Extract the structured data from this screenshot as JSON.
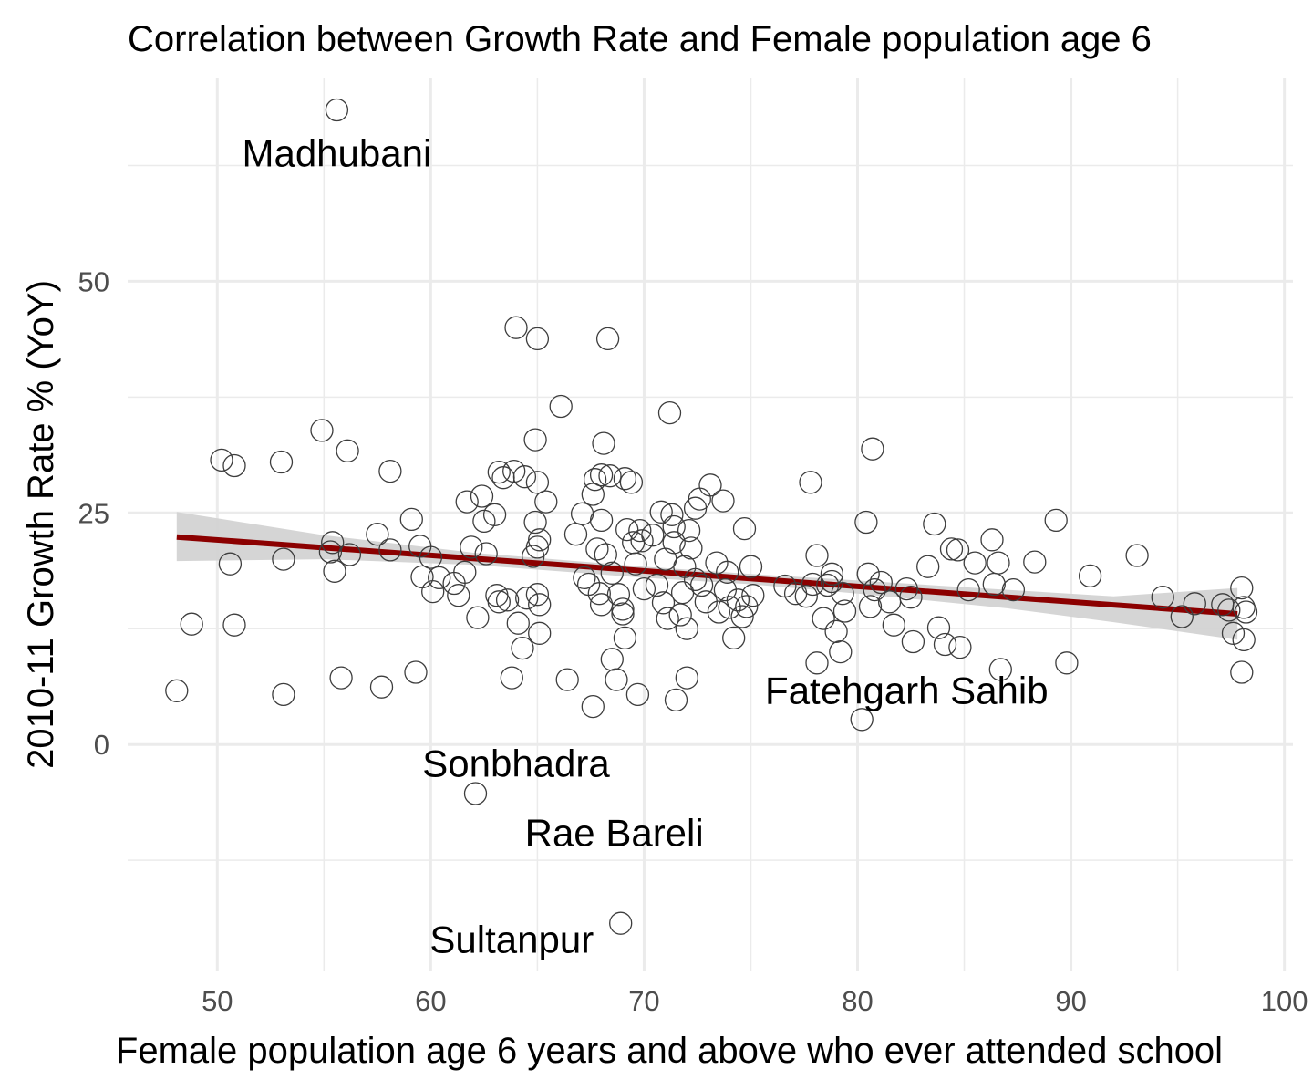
{
  "chart_data": {
    "type": "scatter",
    "title": "Correlation between Growth Rate and Female population age 6",
    "xlabel": "Female population age 6 years and above who ever attended school",
    "ylabel": "2010-11 Growth Rate % (YoY)",
    "xlim": [
      45.8,
      100.4
    ],
    "ylim": [
      -24.5,
      72
    ],
    "x_ticks": [
      50,
      60,
      70,
      80,
      90,
      100
    ],
    "y_ticks": [
      0,
      25,
      50
    ],
    "grid": true,
    "colors": {
      "points": "#3d3d3d",
      "trend": "#8b0000",
      "band": "#d3d3d3",
      "grid": "#ebebeb",
      "tick_text": "#4d4d4d"
    },
    "trend_line": {
      "x": [
        48.1,
        97.8
      ],
      "y": [
        22.4,
        14.1
      ]
    },
    "confidence_band": {
      "x": [
        48.1,
        55,
        62,
        70,
        75,
        80,
        87,
        92,
        97.8
      ],
      "lower": [
        19.8,
        20.0,
        19.4,
        18.0,
        17.3,
        16.3,
        14.7,
        13.2,
        11.3
      ],
      "upper": [
        25.1,
        22.6,
        20.7,
        19.2,
        18.4,
        17.7,
        16.7,
        16.0,
        16.9
      ]
    },
    "labels": [
      {
        "text": "Madhubani",
        "x": 55.6,
        "y": 63.8
      },
      {
        "text": "Fatehgarh Sahib",
        "x": 82.3,
        "y": 5.8
      },
      {
        "text": "Sonbhadra",
        "x": 64.0,
        "y": -2.1
      },
      {
        "text": "Rae Bareli",
        "x": 68.6,
        "y": -9.6
      },
      {
        "text": "Sultanpur",
        "x": 63.8,
        "y": -21.1
      }
    ],
    "points": [
      [
        55.6,
        68.5
      ],
      [
        48.1,
        5.8
      ],
      [
        48.8,
        13.0
      ],
      [
        50.2,
        30.7
      ],
      [
        50.8,
        30.1
      ],
      [
        50.6,
        19.5
      ],
      [
        50.8,
        12.9
      ],
      [
        53.0,
        30.5
      ],
      [
        53.1,
        20.0
      ],
      [
        53.1,
        5.4
      ],
      [
        54.9,
        33.9
      ],
      [
        55.4,
        21.8
      ],
      [
        55.3,
        20.8
      ],
      [
        55.5,
        18.7
      ],
      [
        55.8,
        7.2
      ],
      [
        56.1,
        31.7
      ],
      [
        56.2,
        20.5
      ],
      [
        57.5,
        22.7
      ],
      [
        57.7,
        6.2
      ],
      [
        58.1,
        21.0
      ],
      [
        58.1,
        29.5
      ],
      [
        59.1,
        24.3
      ],
      [
        59.3,
        7.8
      ],
      [
        59.5,
        21.4
      ],
      [
        59.6,
        18.1
      ],
      [
        60.0,
        20.2
      ],
      [
        60.1,
        16.5
      ],
      [
        60.4,
        18.0
      ],
      [
        61.1,
        17.4
      ],
      [
        61.3,
        16.1
      ],
      [
        61.6,
        18.6
      ],
      [
        61.7,
        26.2
      ],
      [
        61.9,
        21.3
      ],
      [
        62.1,
        -5.3
      ],
      [
        62.2,
        13.7
      ],
      [
        62.4,
        26.8
      ],
      [
        62.5,
        24.1
      ],
      [
        62.6,
        20.6
      ],
      [
        63.0,
        24.8
      ],
      [
        63.1,
        16.1
      ],
      [
        63.2,
        29.4
      ],
      [
        63.2,
        15.4
      ],
      [
        63.4,
        28.8
      ],
      [
        63.6,
        15.6
      ],
      [
        63.9,
        29.5
      ],
      [
        63.8,
        7.2
      ],
      [
        64.0,
        45.0
      ],
      [
        64.1,
        13.1
      ],
      [
        64.3,
        10.4
      ],
      [
        64.4,
        28.9
      ],
      [
        64.5,
        15.8
      ],
      [
        64.8,
        20.3
      ],
      [
        64.9,
        24.0
      ],
      [
        64.9,
        32.9
      ],
      [
        65.0,
        43.8
      ],
      [
        65.0,
        28.3
      ],
      [
        65.0,
        21.3
      ],
      [
        65.1,
        22.1
      ],
      [
        65.0,
        16.2
      ],
      [
        65.1,
        12.0
      ],
      [
        65.4,
        26.2
      ],
      [
        65.1,
        15.1
      ],
      [
        66.1,
        36.5
      ],
      [
        66.4,
        7.0
      ],
      [
        66.8,
        22.7
      ],
      [
        67.1,
        24.9
      ],
      [
        67.2,
        18.0
      ],
      [
        67.4,
        17.3
      ],
      [
        67.6,
        27.0
      ],
      [
        67.7,
        28.6
      ],
      [
        67.6,
        4.1
      ],
      [
        67.8,
        21.1
      ],
      [
        67.9,
        16.3
      ],
      [
        68.0,
        15.1
      ],
      [
        68.0,
        24.2
      ],
      [
        68.1,
        32.5
      ],
      [
        68.0,
        29.1
      ],
      [
        68.2,
        20.5
      ],
      [
        68.3,
        43.8
      ],
      [
        68.4,
        29.0
      ],
      [
        68.5,
        18.5
      ],
      [
        68.5,
        9.2
      ],
      [
        68.7,
        7.0
      ],
      [
        68.8,
        16.2
      ],
      [
        68.9,
        -19.3
      ],
      [
        69.0,
        14.6
      ],
      [
        69.0,
        14.1
      ],
      [
        69.1,
        28.7
      ],
      [
        69.2,
        23.2
      ],
      [
        69.1,
        11.5
      ],
      [
        69.4,
        28.3
      ],
      [
        69.5,
        21.8
      ],
      [
        69.6,
        19.5
      ],
      [
        69.7,
        5.4
      ],
      [
        69.8,
        23.1
      ],
      [
        69.9,
        22.0
      ],
      [
        70.0,
        16.8
      ],
      [
        70.4,
        22.6
      ],
      [
        70.6,
        17.2
      ],
      [
        70.8,
        25.1
      ],
      [
        70.9,
        15.3
      ],
      [
        71.0,
        20.0
      ],
      [
        71.1,
        13.6
      ],
      [
        71.3,
        24.8
      ],
      [
        71.2,
        35.8
      ],
      [
        71.4,
        23.5
      ],
      [
        71.4,
        21.8
      ],
      [
        71.5,
        4.8
      ],
      [
        71.7,
        14.0
      ],
      [
        71.8,
        16.4
      ],
      [
        71.9,
        19.2
      ],
      [
        72.0,
        7.2
      ],
      [
        72.0,
        12.5
      ],
      [
        72.1,
        23.1
      ],
      [
        72.2,
        21.2
      ],
      [
        72.4,
        17.8
      ],
      [
        72.4,
        25.5
      ],
      [
        72.6,
        26.5
      ],
      [
        72.7,
        17.2
      ],
      [
        72.9,
        15.4
      ],
      [
        73.1,
        28.0
      ],
      [
        73.4,
        19.6
      ],
      [
        73.5,
        14.3
      ],
      [
        73.7,
        26.3
      ],
      [
        73.8,
        16.7
      ],
      [
        73.9,
        18.6
      ],
      [
        74.0,
        14.8
      ],
      [
        74.2,
        11.5
      ],
      [
        74.4,
        15.6
      ],
      [
        74.6,
        13.8
      ],
      [
        74.7,
        23.3
      ],
      [
        74.8,
        14.9
      ],
      [
        75.0,
        19.2
      ],
      [
        75.1,
        16.1
      ],
      [
        76.6,
        17.1
      ],
      [
        77.1,
        16.3
      ],
      [
        77.6,
        16.0
      ],
      [
        77.8,
        28.3
      ],
      [
        77.9,
        17.3
      ],
      [
        78.1,
        20.4
      ],
      [
        78.1,
        8.8
      ],
      [
        78.4,
        13.6
      ],
      [
        78.6,
        17.2
      ],
      [
        78.8,
        18.4
      ],
      [
        78.8,
        17.6
      ],
      [
        79.0,
        12.2
      ],
      [
        79.2,
        10.0
      ],
      [
        79.3,
        16.3
      ],
      [
        79.4,
        14.4
      ],
      [
        80.2,
        2.7
      ],
      [
        80.4,
        24.0
      ],
      [
        80.5,
        18.4
      ],
      [
        80.6,
        14.9
      ],
      [
        80.7,
        31.9
      ],
      [
        80.8,
        16.7
      ],
      [
        81.1,
        17.5
      ],
      [
        81.5,
        15.4
      ],
      [
        81.7,
        12.9
      ],
      [
        82.3,
        16.8
      ],
      [
        82.5,
        15.9
      ],
      [
        82.6,
        11.1
      ],
      [
        83.3,
        19.2
      ],
      [
        83.6,
        23.8
      ],
      [
        83.8,
        12.6
      ],
      [
        84.1,
        10.8
      ],
      [
        84.4,
        21.1
      ],
      [
        84.7,
        21.0
      ],
      [
        84.8,
        10.5
      ],
      [
        85.2,
        16.7
      ],
      [
        85.5,
        19.6
      ],
      [
        86.3,
        22.1
      ],
      [
        86.4,
        17.3
      ],
      [
        86.6,
        19.6
      ],
      [
        86.7,
        8.1
      ],
      [
        87.3,
        16.7
      ],
      [
        88.3,
        19.7
      ],
      [
        89.3,
        24.2
      ],
      [
        89.8,
        8.8
      ],
      [
        90.9,
        18.2
      ],
      [
        93.1,
        20.4
      ],
      [
        94.3,
        15.9
      ],
      [
        95.2,
        13.8
      ],
      [
        95.8,
        15.2
      ],
      [
        97.1,
        15.1
      ],
      [
        97.4,
        14.5
      ],
      [
        97.6,
        12.0
      ],
      [
        98.0,
        16.9
      ],
      [
        98.1,
        14.8
      ],
      [
        98.1,
        11.3
      ],
      [
        98.2,
        14.3
      ],
      [
        98.0,
        7.8
      ]
    ]
  }
}
